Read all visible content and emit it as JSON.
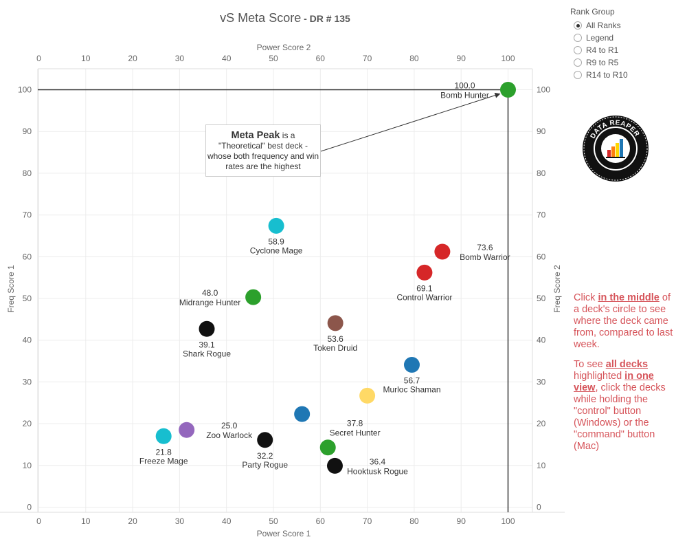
{
  "title": {
    "main": "vS Meta Score",
    "sub": " - DR # 135"
  },
  "rank_group": {
    "title": "Rank Group",
    "options": [
      "All Ranks",
      "Legend",
      "R4 to R1",
      "R9 to R5",
      "R14 to R10"
    ],
    "selected": "All Ranks"
  },
  "annotation": {
    "heading": "Meta Peak",
    "after_heading": " is a",
    "body": "\"Theoretical\" best deck - whose both frequency and win rates are the highest"
  },
  "instructions": {
    "p1_before": "Click ",
    "p1_em": "in the middle",
    "p1_after": " of a deck's circle to see where the deck came from, compared to last week.",
    "p2_before": "To see ",
    "p2_em1": "all decks",
    "p2_mid": " highlighted ",
    "p2_em2": "in one view",
    "p2_after": ", click the decks while holding the \"control\" button (Windows) or the \"command\" button (Mac)"
  },
  "logo": {
    "text": "DATA REAPER REPORT",
    "icon": "bar-chart-logo-icon"
  },
  "chart_data": {
    "type": "scatter",
    "title": "vS Meta Score",
    "xlabel": "Power Score 1",
    "x2label": "Power Score 2",
    "ylabel": "Freq Score 1",
    "y2label": "Freq Score 2",
    "xlim": [
      0,
      105
    ],
    "ylim": [
      -1,
      105
    ],
    "xticks": [
      0,
      10,
      20,
      30,
      40,
      50,
      60,
      70,
      80,
      90,
      100
    ],
    "yticks": [
      0,
      10,
      20,
      30,
      40,
      50,
      60,
      70,
      80,
      90,
      100
    ],
    "grid": true,
    "reference_lines": {
      "x": 100,
      "y": 100
    },
    "points": [
      {
        "name": "Bomb Hunter",
        "label": "100.0",
        "x": 100,
        "y": 100,
        "color": "#2ca02c",
        "lpos": "left"
      },
      {
        "name": "Bomb Warrior",
        "label": "73.6",
        "x": 86,
        "y": 61.2,
        "color": "#d62728",
        "lpos": "right"
      },
      {
        "name": "Control Warrior",
        "label": "69.1",
        "x": 82.2,
        "y": 56.2,
        "color": "#d62728",
        "lpos": "below"
      },
      {
        "name": "Cyclone Mage",
        "label": "58.9",
        "x": 50.6,
        "y": 67.4,
        "color": "#17becf",
        "lpos": "below"
      },
      {
        "name": "Murloc Shaman",
        "label": "56.7",
        "x": 79.5,
        "y": 34.1,
        "color": "#1f77b4",
        "lpos": "below"
      },
      {
        "name": "Token Druid",
        "label": "53.6",
        "x": 63.2,
        "y": 44.1,
        "color": "#8c564b",
        "lpos": "below"
      },
      {
        "name": "Midrange Hunter",
        "label": "48.0",
        "x": 45.7,
        "y": 50.3,
        "color": "#2ca02c",
        "lpos": "left"
      },
      {
        "name": "Shark Rogue",
        "label": "39.1",
        "x": 35.8,
        "y": 42.7,
        "color": "#111111",
        "lpos": "below"
      },
      {
        "name": "Secret Hunter",
        "label": "37.8",
        "x": 70,
        "y": 26.7,
        "color": "#ffd966",
        "lpos": "belowleft"
      },
      {
        "name": "Hooktusk Rogue",
        "label": "36.4",
        "x": 63.1,
        "y": 9.9,
        "color": "#111111",
        "lpos": "right"
      },
      {
        "name": "Party Rogue",
        "label": "32.2",
        "x": 48.2,
        "y": 16.1,
        "color": "#111111",
        "lpos": "below"
      },
      {
        "name": "Zoo Warlock",
        "label": "25.0",
        "x": 31.5,
        "y": 18.5,
        "color": "#9467bd",
        "lpos": "right"
      },
      {
        "name": "Freeze Mage",
        "label": "21.8",
        "x": 26.6,
        "y": 17.0,
        "color": "#17becf",
        "lpos": "below"
      },
      {
        "name": "",
        "label": "",
        "x": 56.1,
        "y": 22.3,
        "color": "#1f77b4",
        "lpos": "none"
      },
      {
        "name": "",
        "label": "",
        "x": 61.6,
        "y": 14.3,
        "color": "#2ca02c",
        "lpos": "none"
      }
    ]
  }
}
